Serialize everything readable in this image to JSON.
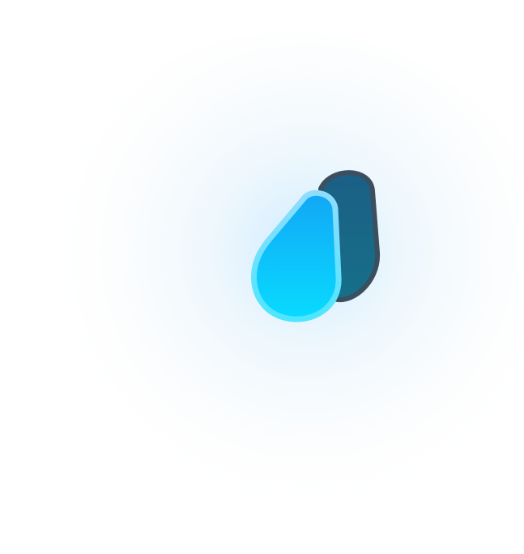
{
  "logo": {
    "icon": "droplets-icon",
    "colors": {
      "back_drop_top": "#1b5f86",
      "back_drop_bottom": "#166f88",
      "back_drop_rim": "#3b4f5f",
      "front_drop_top": "#12a7f5",
      "front_drop_bottom": "#08dbff",
      "front_drop_rim_top": "#8fdcff",
      "front_drop_rim_bottom": "#4ee6ff",
      "glow": "#4fb6ff"
    }
  }
}
